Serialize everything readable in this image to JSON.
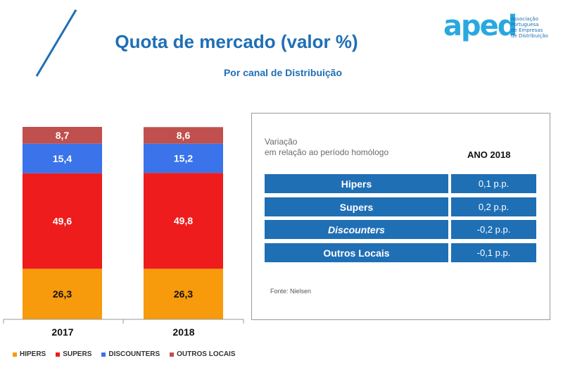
{
  "header": {
    "title": "Quota de mercado (valor %)",
    "subtitle": "Por canal de Distribuição"
  },
  "logo": {
    "word": "aped",
    "tagline": [
      "Associação",
      "Portuguesa",
      "de Empresas",
      "de Distribuição"
    ]
  },
  "colors": {
    "hipers": "#f79a0c",
    "supers": "#ee1c1c",
    "discounters": "#3a73ea",
    "outros": "#c0504d",
    "accent": "#1f6fb5"
  },
  "chart_data": {
    "type": "bar",
    "stacked": true,
    "categories": [
      "2017",
      "2018"
    ],
    "series": [
      {
        "name": "HIPERS",
        "values": [
          26.3,
          26.3
        ],
        "labels": [
          "26,3",
          "26,3"
        ]
      },
      {
        "name": "SUPERS",
        "values": [
          49.6,
          49.8
        ],
        "labels": [
          "49,6",
          "49,8"
        ]
      },
      {
        "name": "DISCOUNTERS",
        "values": [
          15.4,
          15.2
        ],
        "labels": [
          "15,4",
          "15,2"
        ]
      },
      {
        "name": "OUTROS LOCAIS",
        "values": [
          8.7,
          8.6
        ],
        "labels": [
          "8,7",
          "8,6"
        ]
      }
    ],
    "ylim": [
      0,
      100
    ],
    "legend_position": "bottom"
  },
  "panel": {
    "head_line1": "Variação",
    "head_line2": "em relação ao período homólogo",
    "year_label": "ANO 2018",
    "rows": [
      {
        "label": "Hipers",
        "value": "0,1 p.p."
      },
      {
        "label": "Supers",
        "value": "0,2 p.p."
      },
      {
        "label": "Discounters",
        "value": "-0,2 p.p."
      },
      {
        "label": "Outros Locais",
        "value": "-0,1 p.p."
      }
    ],
    "source": "Fonte: Nielsen"
  }
}
